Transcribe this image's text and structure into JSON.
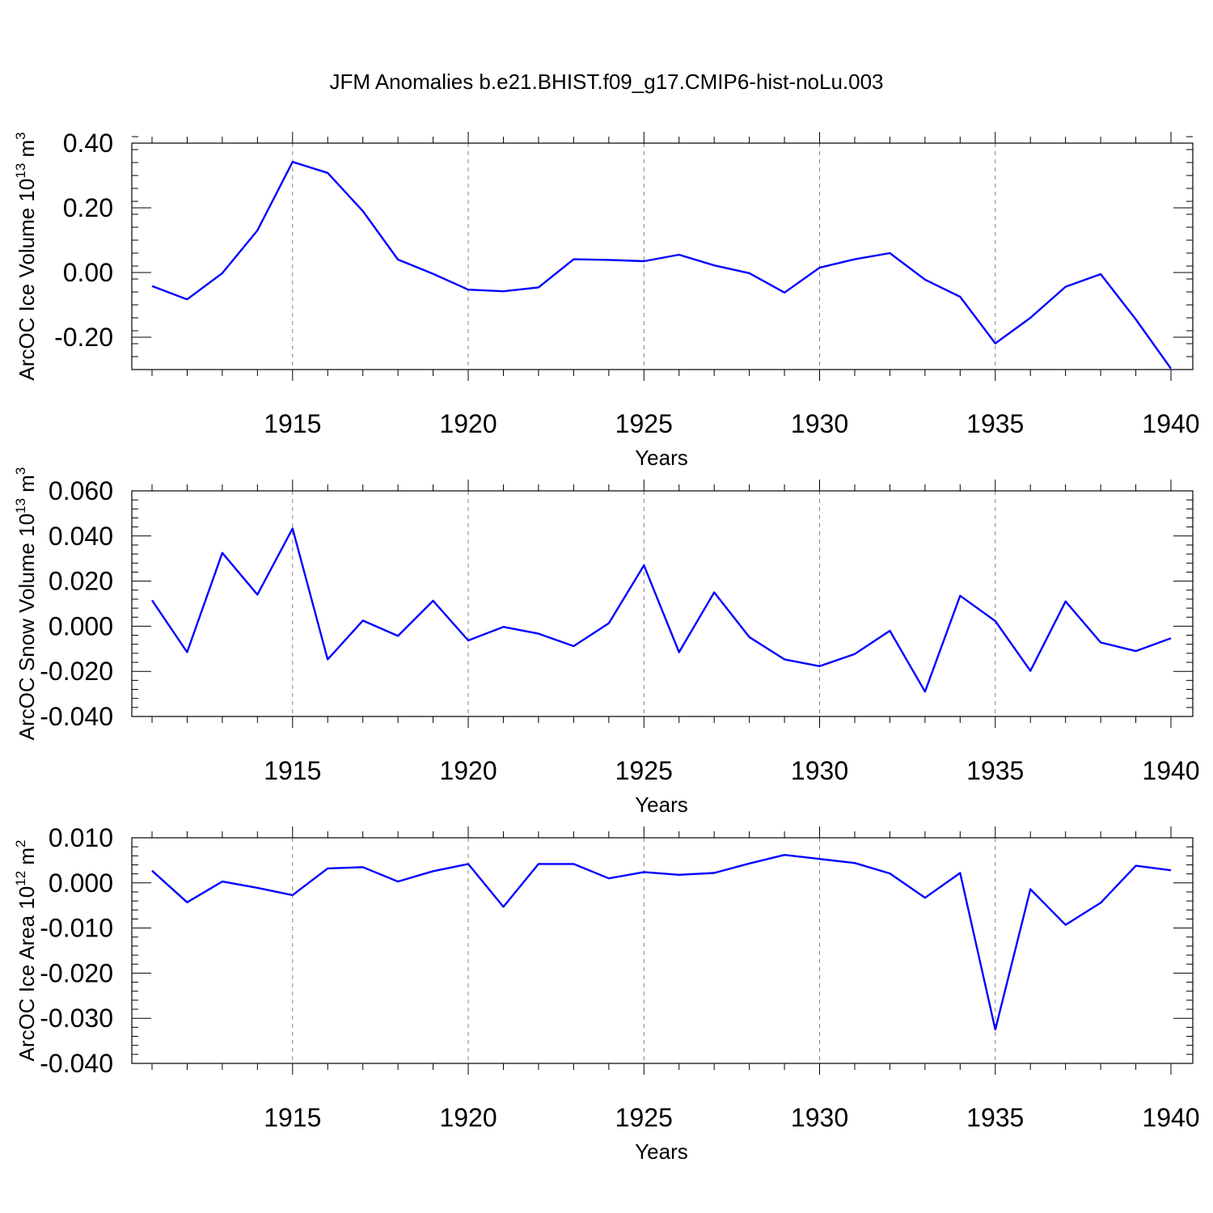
{
  "title": "JFM Anomalies b.e21.BHIST.f09_g17.CMIP6-hist-noLu.003",
  "line_color": "#0000ff",
  "chart_data": [
    {
      "type": "line",
      "ylabel": "ArcOC Ice Volume 10",
      "ylabel_exp": "13",
      "ylabel_unit": "m",
      "ylabel_unit_exp": "3",
      "xlabel": "Years",
      "xlim": [
        1911,
        1940
      ],
      "ylim": [
        -0.3,
        0.4
      ],
      "yticks": [
        -0.2,
        0.0,
        0.2,
        0.4
      ],
      "ytick_labels": [
        "-0.20",
        "0.00",
        "0.20",
        "0.40"
      ],
      "yminor_step": 0.04,
      "xticks": [
        1915,
        1920,
        1925,
        1930,
        1935,
        1940
      ],
      "xtick_labels": [
        "1915",
        "1920",
        "1925",
        "1930",
        "1935",
        "1940"
      ],
      "grid": "vertical-dashed",
      "series": [
        {
          "x": [
            1911,
            1912,
            1913,
            1914,
            1915,
            1916,
            1917,
            1918,
            1919,
            1920,
            1921,
            1922,
            1923,
            1924,
            1925,
            1926,
            1927,
            1928,
            1929,
            1930,
            1931,
            1932,
            1933,
            1934,
            1935,
            1936,
            1937,
            1938,
            1939,
            1940
          ],
          "values": [
            -0.042,
            -0.083,
            -0.002,
            0.13,
            0.342,
            0.308,
            0.19,
            0.04,
            -0.004,
            -0.053,
            -0.058,
            -0.046,
            0.041,
            0.039,
            0.035,
            0.055,
            0.022,
            -0.002,
            -0.062,
            0.015,
            0.041,
            0.06,
            -0.022,
            -0.075,
            -0.219,
            -0.14,
            -0.044,
            -0.005,
            -0.145,
            -0.297
          ]
        }
      ]
    },
    {
      "type": "line",
      "ylabel": "ArcOC Snow Volume 10",
      "ylabel_exp": "13",
      "ylabel_unit": "m",
      "ylabel_unit_exp": "3",
      "xlabel": "Years",
      "xlim": [
        1911,
        1940
      ],
      "ylim": [
        -0.04,
        0.06
      ],
      "yticks": [
        -0.04,
        -0.02,
        0.0,
        0.02,
        0.04,
        0.06
      ],
      "ytick_labels": [
        "-0.040",
        "-0.020",
        "0.000",
        "0.020",
        "0.040",
        "0.060"
      ],
      "yminor_step": 0.004,
      "xticks": [
        1915,
        1920,
        1925,
        1930,
        1935,
        1940
      ],
      "xtick_labels": [
        "1915",
        "1920",
        "1925",
        "1930",
        "1935",
        "1940"
      ],
      "grid": "vertical-dashed",
      "series": [
        {
          "x": [
            1911,
            1912,
            1913,
            1914,
            1915,
            1916,
            1917,
            1918,
            1919,
            1920,
            1921,
            1922,
            1923,
            1924,
            1925,
            1926,
            1927,
            1928,
            1929,
            1930,
            1931,
            1932,
            1933,
            1934,
            1935,
            1936,
            1937,
            1938,
            1939,
            1940
          ],
          "values": [
            0.0115,
            -0.0115,
            0.0325,
            0.014,
            0.0433,
            -0.0147,
            0.0025,
            -0.0043,
            0.0113,
            -0.0063,
            -0.0003,
            -0.0033,
            -0.0088,
            0.0013,
            0.027,
            -0.0115,
            0.015,
            -0.0048,
            -0.0147,
            -0.0177,
            -0.0123,
            -0.002,
            -0.029,
            0.0135,
            0.0023,
            -0.0198,
            0.011,
            -0.0072,
            -0.011,
            -0.0053
          ]
        }
      ]
    },
    {
      "type": "line",
      "ylabel": "ArcOC Ice Area 10",
      "ylabel_exp": "12",
      "ylabel_unit": "m",
      "ylabel_unit_exp": "2",
      "xlabel": "Years",
      "xlim": [
        1911,
        1940
      ],
      "ylim": [
        -0.04,
        0.01
      ],
      "yticks": [
        -0.04,
        -0.03,
        -0.02,
        -0.01,
        0.0,
        0.01
      ],
      "ytick_labels": [
        "-0.040",
        "-0.030",
        "-0.020",
        "-0.010",
        "0.000",
        "0.010"
      ],
      "yminor_step": 0.002,
      "xticks": [
        1915,
        1920,
        1925,
        1930,
        1935,
        1940
      ],
      "xtick_labels": [
        "1915",
        "1920",
        "1925",
        "1930",
        "1935",
        "1940"
      ],
      "grid": "vertical-dashed",
      "series": [
        {
          "x": [
            1911,
            1912,
            1913,
            1914,
            1915,
            1916,
            1917,
            1918,
            1919,
            1920,
            1921,
            1922,
            1923,
            1924,
            1925,
            1926,
            1927,
            1928,
            1929,
            1930,
            1931,
            1932,
            1933,
            1934,
            1935,
            1936,
            1937,
            1938,
            1939,
            1940
          ],
          "values": [
            0.0027,
            -0.0043,
            0.0003,
            -0.0011,
            -0.0027,
            0.0032,
            0.0035,
            0.0003,
            0.0026,
            0.0042,
            -0.0053,
            0.0042,
            0.0042,
            0.001,
            0.0024,
            0.0018,
            0.0022,
            0.0043,
            0.0062,
            0.0053,
            0.0044,
            0.0021,
            -0.0033,
            0.0022,
            -0.0325,
            -0.0014,
            -0.0093,
            -0.0044,
            0.0038,
            0.0028
          ]
        }
      ]
    }
  ]
}
